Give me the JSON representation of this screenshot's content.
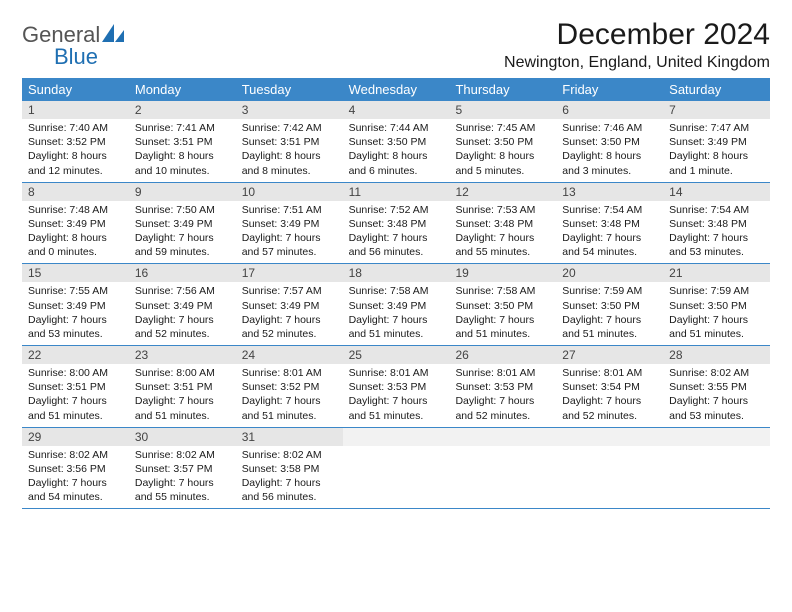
{
  "brand": {
    "line1": "General",
    "line2": "Blue"
  },
  "title": "December 2024",
  "location": "Newington, England, United Kingdom",
  "colors": {
    "header_bg": "#3b87c8",
    "daynum_bg": "#e6e6e6",
    "border": "#3b87c8",
    "logo_gray": "#555555",
    "logo_blue": "#1f6fb2"
  },
  "day_headers": [
    "Sunday",
    "Monday",
    "Tuesday",
    "Wednesday",
    "Thursday",
    "Friday",
    "Saturday"
  ],
  "weeks": [
    [
      {
        "n": "1",
        "sr": "Sunrise: 7:40 AM",
        "ss": "Sunset: 3:52 PM",
        "d1": "Daylight: 8 hours",
        "d2": "and 12 minutes."
      },
      {
        "n": "2",
        "sr": "Sunrise: 7:41 AM",
        "ss": "Sunset: 3:51 PM",
        "d1": "Daylight: 8 hours",
        "d2": "and 10 minutes."
      },
      {
        "n": "3",
        "sr": "Sunrise: 7:42 AM",
        "ss": "Sunset: 3:51 PM",
        "d1": "Daylight: 8 hours",
        "d2": "and 8 minutes."
      },
      {
        "n": "4",
        "sr": "Sunrise: 7:44 AM",
        "ss": "Sunset: 3:50 PM",
        "d1": "Daylight: 8 hours",
        "d2": "and 6 minutes."
      },
      {
        "n": "5",
        "sr": "Sunrise: 7:45 AM",
        "ss": "Sunset: 3:50 PM",
        "d1": "Daylight: 8 hours",
        "d2": "and 5 minutes."
      },
      {
        "n": "6",
        "sr": "Sunrise: 7:46 AM",
        "ss": "Sunset: 3:50 PM",
        "d1": "Daylight: 8 hours",
        "d2": "and 3 minutes."
      },
      {
        "n": "7",
        "sr": "Sunrise: 7:47 AM",
        "ss": "Sunset: 3:49 PM",
        "d1": "Daylight: 8 hours",
        "d2": "and 1 minute."
      }
    ],
    [
      {
        "n": "8",
        "sr": "Sunrise: 7:48 AM",
        "ss": "Sunset: 3:49 PM",
        "d1": "Daylight: 8 hours",
        "d2": "and 0 minutes."
      },
      {
        "n": "9",
        "sr": "Sunrise: 7:50 AM",
        "ss": "Sunset: 3:49 PM",
        "d1": "Daylight: 7 hours",
        "d2": "and 59 minutes."
      },
      {
        "n": "10",
        "sr": "Sunrise: 7:51 AM",
        "ss": "Sunset: 3:49 PM",
        "d1": "Daylight: 7 hours",
        "d2": "and 57 minutes."
      },
      {
        "n": "11",
        "sr": "Sunrise: 7:52 AM",
        "ss": "Sunset: 3:48 PM",
        "d1": "Daylight: 7 hours",
        "d2": "and 56 minutes."
      },
      {
        "n": "12",
        "sr": "Sunrise: 7:53 AM",
        "ss": "Sunset: 3:48 PM",
        "d1": "Daylight: 7 hours",
        "d2": "and 55 minutes."
      },
      {
        "n": "13",
        "sr": "Sunrise: 7:54 AM",
        "ss": "Sunset: 3:48 PM",
        "d1": "Daylight: 7 hours",
        "d2": "and 54 minutes."
      },
      {
        "n": "14",
        "sr": "Sunrise: 7:54 AM",
        "ss": "Sunset: 3:48 PM",
        "d1": "Daylight: 7 hours",
        "d2": "and 53 minutes."
      }
    ],
    [
      {
        "n": "15",
        "sr": "Sunrise: 7:55 AM",
        "ss": "Sunset: 3:49 PM",
        "d1": "Daylight: 7 hours",
        "d2": "and 53 minutes."
      },
      {
        "n": "16",
        "sr": "Sunrise: 7:56 AM",
        "ss": "Sunset: 3:49 PM",
        "d1": "Daylight: 7 hours",
        "d2": "and 52 minutes."
      },
      {
        "n": "17",
        "sr": "Sunrise: 7:57 AM",
        "ss": "Sunset: 3:49 PM",
        "d1": "Daylight: 7 hours",
        "d2": "and 52 minutes."
      },
      {
        "n": "18",
        "sr": "Sunrise: 7:58 AM",
        "ss": "Sunset: 3:49 PM",
        "d1": "Daylight: 7 hours",
        "d2": "and 51 minutes."
      },
      {
        "n": "19",
        "sr": "Sunrise: 7:58 AM",
        "ss": "Sunset: 3:50 PM",
        "d1": "Daylight: 7 hours",
        "d2": "and 51 minutes."
      },
      {
        "n": "20",
        "sr": "Sunrise: 7:59 AM",
        "ss": "Sunset: 3:50 PM",
        "d1": "Daylight: 7 hours",
        "d2": "and 51 minutes."
      },
      {
        "n": "21",
        "sr": "Sunrise: 7:59 AM",
        "ss": "Sunset: 3:50 PM",
        "d1": "Daylight: 7 hours",
        "d2": "and 51 minutes."
      }
    ],
    [
      {
        "n": "22",
        "sr": "Sunrise: 8:00 AM",
        "ss": "Sunset: 3:51 PM",
        "d1": "Daylight: 7 hours",
        "d2": "and 51 minutes."
      },
      {
        "n": "23",
        "sr": "Sunrise: 8:00 AM",
        "ss": "Sunset: 3:51 PM",
        "d1": "Daylight: 7 hours",
        "d2": "and 51 minutes."
      },
      {
        "n": "24",
        "sr": "Sunrise: 8:01 AM",
        "ss": "Sunset: 3:52 PM",
        "d1": "Daylight: 7 hours",
        "d2": "and 51 minutes."
      },
      {
        "n": "25",
        "sr": "Sunrise: 8:01 AM",
        "ss": "Sunset: 3:53 PM",
        "d1": "Daylight: 7 hours",
        "d2": "and 51 minutes."
      },
      {
        "n": "26",
        "sr": "Sunrise: 8:01 AM",
        "ss": "Sunset: 3:53 PM",
        "d1": "Daylight: 7 hours",
        "d2": "and 52 minutes."
      },
      {
        "n": "27",
        "sr": "Sunrise: 8:01 AM",
        "ss": "Sunset: 3:54 PM",
        "d1": "Daylight: 7 hours",
        "d2": "and 52 minutes."
      },
      {
        "n": "28",
        "sr": "Sunrise: 8:02 AM",
        "ss": "Sunset: 3:55 PM",
        "d1": "Daylight: 7 hours",
        "d2": "and 53 minutes."
      }
    ],
    [
      {
        "n": "29",
        "sr": "Sunrise: 8:02 AM",
        "ss": "Sunset: 3:56 PM",
        "d1": "Daylight: 7 hours",
        "d2": "and 54 minutes."
      },
      {
        "n": "30",
        "sr": "Sunrise: 8:02 AM",
        "ss": "Sunset: 3:57 PM",
        "d1": "Daylight: 7 hours",
        "d2": "and 55 minutes."
      },
      {
        "n": "31",
        "sr": "Sunrise: 8:02 AM",
        "ss": "Sunset: 3:58 PM",
        "d1": "Daylight: 7 hours",
        "d2": "and 56 minutes."
      },
      {
        "n": "",
        "sr": "",
        "ss": "",
        "d1": "",
        "d2": ""
      },
      {
        "n": "",
        "sr": "",
        "ss": "",
        "d1": "",
        "d2": ""
      },
      {
        "n": "",
        "sr": "",
        "ss": "",
        "d1": "",
        "d2": ""
      },
      {
        "n": "",
        "sr": "",
        "ss": "",
        "d1": "",
        "d2": ""
      }
    ]
  ]
}
